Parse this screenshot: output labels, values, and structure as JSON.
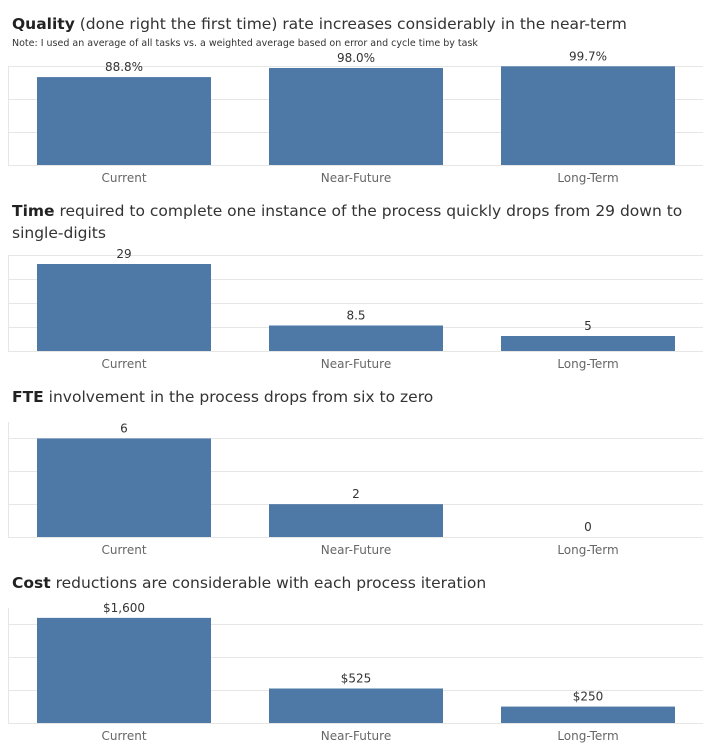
{
  "chart_data": [
    {
      "type": "bar",
      "title_bold": "Quality",
      "title_rest": " (done right the first time) rate increases considerably in the near-term",
      "note": "Note: I used an average of all tasks vs. a weighted average based on error and cycle time by task",
      "categories": [
        "Current",
        "Near-Future",
        "Long-Term"
      ],
      "values": [
        88.8,
        98.0,
        99.7
      ],
      "labels": [
        "88.8%",
        "98.0%",
        "99.7%"
      ],
      "ylim": [
        0,
        100
      ],
      "gridlines": [
        0,
        33.3,
        66.7,
        100
      ],
      "color": "#4e79a7"
    },
    {
      "type": "bar",
      "title_bold": "Time",
      "title_rest": " required to complete one instance of the process quickly drops from 29 down to single-digits",
      "categories": [
        "Current",
        "Near-Future",
        "Long-Term"
      ],
      "values": [
        29,
        8.5,
        5
      ],
      "labels": [
        "29",
        "8.5",
        "5"
      ],
      "ylim": [
        0,
        32
      ],
      "gridlines": [
        0,
        8,
        16,
        24,
        32
      ],
      "color": "#4e79a7"
    },
    {
      "type": "bar",
      "title_bold": "FTE",
      "title_rest": " involvement in the process drops from six to zero",
      "categories": [
        "Current",
        "Near-Future",
        "Long-Term"
      ],
      "values": [
        6,
        2,
        0
      ],
      "labels": [
        "6",
        "2",
        "0"
      ],
      "ylim": [
        0,
        7
      ],
      "gridlines": [
        0,
        2,
        4,
        6
      ],
      "color": "#4e79a7"
    },
    {
      "type": "bar",
      "title_bold": "Cost",
      "title_rest": " reductions are considerable with each process iteration",
      "categories": [
        "Current",
        "Near-Future",
        "Long-Term"
      ],
      "values": [
        1600,
        525,
        250
      ],
      "labels": [
        "$1,600",
        "$525",
        "$250"
      ],
      "ylim": [
        0,
        1750
      ],
      "gridlines": [
        0,
        500,
        1000,
        1500
      ],
      "color": "#4e79a7"
    }
  ]
}
